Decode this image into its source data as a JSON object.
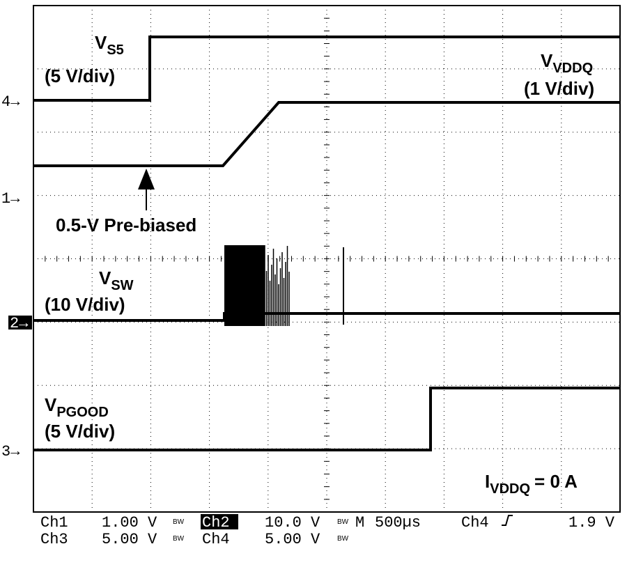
{
  "channels": {
    "markers": [
      "4→",
      "1→",
      "2→",
      "3→"
    ]
  },
  "labels": {
    "vs5": {
      "main": "V",
      "sub": "S5",
      "scale": "(5 V/div)"
    },
    "vvddq": {
      "main": "V",
      "sub": "VDDQ",
      "scale": "(1 V/div)"
    },
    "vsw": {
      "main": "V",
      "sub": "SW",
      "scale": "(10 V/div)"
    },
    "vpgood": {
      "main": "V",
      "sub": "PGOOD",
      "scale": "(5 V/div)"
    },
    "prebias": "0.5-V Pre-biased",
    "load": {
      "main": "I",
      "sub": "VDDQ",
      "rest": "= 0 A"
    }
  },
  "status": {
    "row1": [
      "Ch1",
      "1.00 V",
      "BW",
      "Ch2",
      "10.0 V",
      "BW",
      "M",
      "500µs",
      "Ch4",
      "1.9 V"
    ],
    "row2": [
      "Ch3",
      "5.00 V",
      "BW",
      "Ch4",
      "5.00 V",
      "BW"
    ]
  }
}
